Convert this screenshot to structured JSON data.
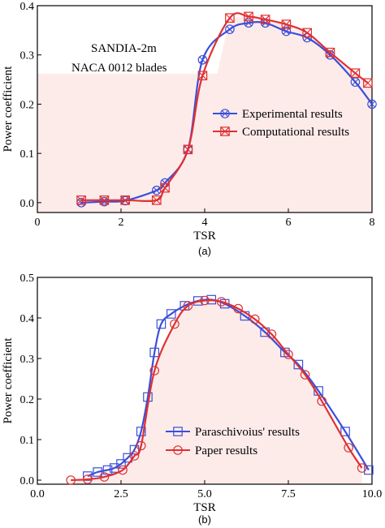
{
  "chart_data": [
    {
      "type": "line",
      "panel_label": "(a)",
      "xlabel": "TSR",
      "ylabel": "Power coefficient",
      "xlim": [
        0,
        8
      ],
      "ylim": [
        -0.02,
        0.4
      ],
      "x_ticks": [
        0,
        2,
        4,
        6,
        8
      ],
      "y_ticks": [
        0.0,
        0.1,
        0.2,
        0.3,
        0.4
      ],
      "x_tick_labels": [
        "0",
        "2",
        "4",
        "6",
        "8"
      ],
      "y_tick_labels": [
        "0.0",
        "0.1",
        "0.2",
        "0.3",
        "0.4"
      ],
      "annotations": [
        "SANDIA-2m",
        "NACA 0012 blades"
      ],
      "legend_position": "center-right",
      "background_fill": "#fdebea",
      "series": [
        {
          "name": "Experimental results",
          "color": "#3b4fd8",
          "marker": "circle-x",
          "x": [
            1.05,
            1.6,
            2.1,
            2.85,
            3.05,
            3.6,
            3.95,
            4.6,
            5.05,
            5.45,
            5.95,
            6.45,
            7.0,
            7.6,
            8.0
          ],
          "y": [
            0.0,
            0.002,
            0.004,
            0.025,
            0.04,
            0.108,
            0.29,
            0.352,
            0.365,
            0.365,
            0.348,
            0.335,
            0.3,
            0.245,
            0.2
          ]
        },
        {
          "name": "Computational results",
          "color": "#e03030",
          "marker": "square-x",
          "x": [
            1.05,
            1.6,
            2.1,
            2.85,
            3.05,
            3.6,
            3.95,
            4.6,
            5.05,
            5.45,
            5.95,
            6.45,
            7.0,
            7.6,
            7.9
          ],
          "y": [
            0.005,
            0.005,
            0.005,
            0.005,
            0.03,
            0.108,
            0.258,
            0.375,
            0.378,
            0.372,
            0.362,
            0.345,
            0.305,
            0.263,
            0.243
          ]
        }
      ]
    },
    {
      "type": "line",
      "panel_label": "(b)",
      "xlabel": "TSR",
      "ylabel": "Power coefficient",
      "xlim": [
        0,
        10
      ],
      "ylim": [
        -0.01,
        0.5
      ],
      "x_ticks": [
        0,
        2.5,
        5,
        7.5,
        10
      ],
      "y_ticks": [
        0.0,
        0.1,
        0.2,
        0.3,
        0.4,
        0.5
      ],
      "x_tick_labels": [
        "0.0",
        "2.5",
        "5.0",
        "7.5",
        "10.0"
      ],
      "y_tick_labels": [
        "0.0",
        "0.1",
        "0.2",
        "0.3",
        "0.4",
        "0.5"
      ],
      "legend_position": "bottom-center",
      "background_fill": "#fdebea",
      "series": [
        {
          "name": "Paraschivoius' results",
          "color": "#3b4fd8",
          "marker": "square",
          "x": [
            1.5,
            1.8,
            2.1,
            2.3,
            2.5,
            2.7,
            2.9,
            3.1,
            3.3,
            3.5,
            3.7,
            4.0,
            4.4,
            4.8,
            5.2,
            5.6,
            6.2,
            6.8,
            7.4,
            7.8,
            8.4,
            9.2,
            9.9
          ],
          "y": [
            0.01,
            0.02,
            0.025,
            0.03,
            0.04,
            0.055,
            0.075,
            0.12,
            0.205,
            0.315,
            0.385,
            0.41,
            0.43,
            0.442,
            0.445,
            0.435,
            0.405,
            0.365,
            0.315,
            0.285,
            0.22,
            0.12,
            0.025
          ]
        },
        {
          "name": "Paper results",
          "color": "#e03030",
          "marker": "circle",
          "x": [
            1.0,
            1.5,
            2.0,
            2.55,
            2.9,
            3.1,
            3.5,
            4.1,
            4.5,
            5.0,
            5.5,
            6.0,
            6.5,
            7.0,
            7.5,
            8.0,
            8.5,
            9.3,
            9.7
          ],
          "y": [
            0.0,
            0.002,
            0.008,
            0.025,
            0.06,
            0.085,
            0.27,
            0.385,
            0.43,
            0.443,
            0.44,
            0.423,
            0.397,
            0.36,
            0.31,
            0.26,
            0.195,
            0.08,
            0.03
          ]
        }
      ]
    }
  ]
}
